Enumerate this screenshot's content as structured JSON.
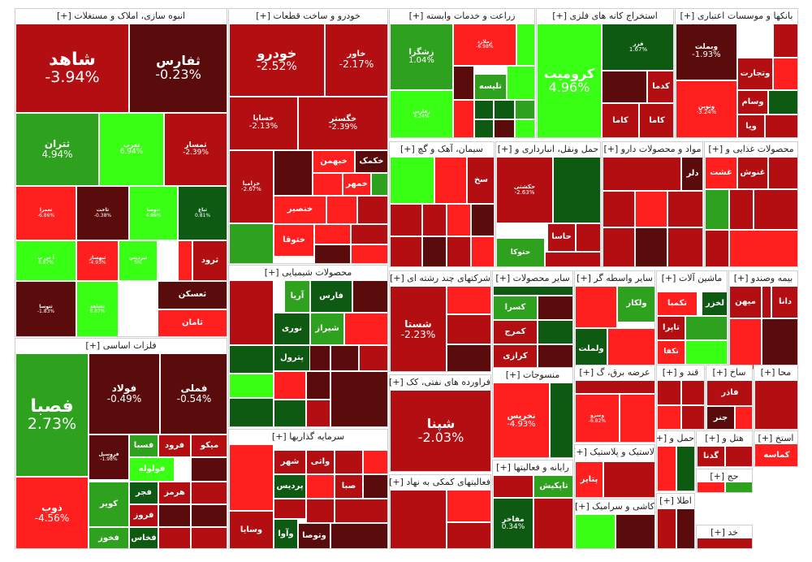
{
  "expand_marker": "[+]",
  "colors": {
    "dark_red": "#5a0b0b",
    "red": "#b30f12",
    "bright_red": "#ff1f1f",
    "dark_green": "#0e5a12",
    "green": "#2ea21f",
    "bright_green": "#39ff14"
  },
  "sectors": [
    {
      "key": "s1",
      "title": "انبوه سازی، املاک و مستغلات"
    },
    {
      "key": "s2",
      "title": "خودرو و ساخت قطعات"
    },
    {
      "key": "s3",
      "title": "زراعت و خدمات وابسته"
    },
    {
      "key": "s4",
      "title": "استخراج کانه های فلزی"
    },
    {
      "key": "s5",
      "title": "بانکها و موسسات اعتباری"
    },
    {
      "key": "s6",
      "title": "فلزات اساسی"
    },
    {
      "key": "s7",
      "title": "محصولات شیمیایی"
    },
    {
      "key": "s8",
      "title": "سیمان، آهک و گچ"
    },
    {
      "key": "s9",
      "title": "حمل ونقل، انبارداری و"
    },
    {
      "key": "s10",
      "title": "مواد و محصولات دارو"
    },
    {
      "key": "s11",
      "title": "محصولات غذایی و"
    },
    {
      "key": "s12",
      "title": "شرکتهای چند رشته ای"
    },
    {
      "key": "s13",
      "title": "سایر محصولات"
    },
    {
      "key": "s14",
      "title": "سایر واسطه گر"
    },
    {
      "key": "s15",
      "title": "ماشین آلات"
    },
    {
      "key": "s16",
      "title": "بیمه وصندو"
    },
    {
      "key": "s17",
      "title": "سرمایه گذاریها"
    },
    {
      "key": "s18",
      "title": "فراورده های نفتی، کک"
    },
    {
      "key": "s19",
      "title": "منسوجات"
    },
    {
      "key": "s20",
      "title": "عرضه برق، گ"
    },
    {
      "key": "s21",
      "title": "قند و"
    },
    {
      "key": "s22",
      "title": "ساخ"
    },
    {
      "key": "s23",
      "title": "محا"
    },
    {
      "key": "s24",
      "title": "لاستیک و پلاستیک"
    },
    {
      "key": "s25",
      "title": "فعالیتهای کمکی به نهاد"
    },
    {
      "key": "s26",
      "title": "رایانه و فعالیتها"
    },
    {
      "key": "s27",
      "title": "کاشی و سرامیک"
    },
    {
      "key": "s28",
      "title": "اطلا"
    },
    {
      "key": "s29",
      "title": "استخ"
    },
    {
      "key": "s30",
      "title": "حمل و"
    },
    {
      "key": "s31",
      "title": "هتل و"
    },
    {
      "key": "s32",
      "title": "خد"
    },
    {
      "key": "s33",
      "title": "حج"
    }
  ],
  "tiles": [
    {
      "name": "شاهد",
      "pct": "-3.94%"
    },
    {
      "name": "ثفارس",
      "pct": "-0.23%"
    },
    {
      "name": "ثتران",
      "pct": "4.94%"
    },
    {
      "name": "ثغرب",
      "pct": "6.94%"
    },
    {
      "name": "ثمسار",
      "pct": "-2.39%"
    },
    {
      "name": "ثعمرا",
      "pct": "-6.86%"
    },
    {
      "name": "ثاخت",
      "pct": "-0.38%"
    },
    {
      "name": "ثنوسا",
      "pct": "4.86%"
    },
    {
      "name": "ثباغ",
      "pct": "0.81%"
    },
    {
      "name": "آ س پ",
      "pct": "6.87%"
    },
    {
      "name": "ثبهساز",
      "pct": "-4.93%"
    },
    {
      "name": "ثپرديس",
      "pct": "5%"
    },
    {
      "name": "ثتوسا",
      "pct": "-1.83%"
    },
    {
      "name": "ثشاهد",
      "pct": "8.87%"
    },
    {
      "name": "ثرود",
      "pct": ""
    },
    {
      "name": "ثعسکن",
      "pct": ""
    },
    {
      "name": "ثامان",
      "pct": ""
    },
    {
      "name": "خودرو",
      "pct": "-2.52%"
    },
    {
      "name": "خاور",
      "pct": "-2.17%"
    },
    {
      "name": "خساپا",
      "pct": "-2.13%"
    },
    {
      "name": "خگستر",
      "pct": "-2.39%"
    },
    {
      "name": "خزامیا",
      "pct": "-2.67%"
    },
    {
      "name": "خکمک",
      "pct": ""
    },
    {
      "name": "خبهمن",
      "pct": ""
    },
    {
      "name": "خمهر",
      "pct": ""
    },
    {
      "name": "خنصیر",
      "pct": ""
    },
    {
      "name": "ختوقا",
      "pct": ""
    },
    {
      "name": "زشگزا",
      "pct": "1.04%"
    },
    {
      "name": "زملارد",
      "pct": "-6.98%"
    },
    {
      "name": "زفارس",
      "pct": "4.24%"
    },
    {
      "name": "تلیسه",
      "pct": ""
    },
    {
      "name": "کرومیت",
      "pct": "4.96%"
    },
    {
      "name": "فزر",
      "pct": "1.67%"
    },
    {
      "name": "کدما",
      "pct": ""
    },
    {
      "name": "کاما",
      "pct": ""
    },
    {
      "name": "وبملت",
      "pct": "-1.93%"
    },
    {
      "name": "وتجارت",
      "pct": ""
    },
    {
      "name": "وتوبن",
      "pct": "-3.24%"
    },
    {
      "name": "وسام",
      "pct": ""
    },
    {
      "name": "ویا",
      "pct": ""
    },
    {
      "name": "فصبا",
      "pct": "2.73%"
    },
    {
      "name": "فولاد",
      "pct": "-0.49%"
    },
    {
      "name": "فملی",
      "pct": "-0.54%"
    },
    {
      "name": "ذوب",
      "pct": "-4.56%"
    },
    {
      "name": "فروسيل",
      "pct": "-1.98%"
    },
    {
      "name": "فسبا",
      "pct": ""
    },
    {
      "name": "فرود",
      "pct": ""
    },
    {
      "name": "میکو",
      "pct": ""
    },
    {
      "name": "فولوله",
      "pct": ""
    },
    {
      "name": "فجر",
      "pct": ""
    },
    {
      "name": "فروز",
      "pct": ""
    },
    {
      "name": "فخاس",
      "pct": ""
    },
    {
      "name": "فخوز",
      "pct": ""
    },
    {
      "name": "کویر",
      "pct": ""
    },
    {
      "name": "هرمز",
      "pct": ""
    },
    {
      "name": "آریا",
      "pct": ""
    },
    {
      "name": "فارس",
      "pct": ""
    },
    {
      "name": "نوری",
      "pct": ""
    },
    {
      "name": "شیراز",
      "pct": ""
    },
    {
      "name": "پترول",
      "pct": ""
    },
    {
      "name": "سخ",
      "pct": ""
    },
    {
      "name": "حتوکا",
      "pct": ""
    },
    {
      "name": "حکشتی",
      "pct": "-2.63%"
    },
    {
      "name": "حاسا",
      "pct": ""
    },
    {
      "name": "دلر",
      "pct": ""
    },
    {
      "name": "غشت",
      "pct": ""
    },
    {
      "name": "غنوش",
      "pct": ""
    },
    {
      "name": "شستا",
      "pct": "-2.23%"
    },
    {
      "name": "کسرا",
      "pct": ""
    },
    {
      "name": "کمرج",
      "pct": ""
    },
    {
      "name": "کرازی",
      "pct": ""
    },
    {
      "name": "ولکار",
      "pct": ""
    },
    {
      "name": "ولملت",
      "pct": ""
    },
    {
      "name": "تکمبا",
      "pct": ""
    },
    {
      "name": "تاپرا",
      "pct": ""
    },
    {
      "name": "تکفا",
      "pct": ""
    },
    {
      "name": "لخزر",
      "pct": ""
    },
    {
      "name": "میهن",
      "pct": ""
    },
    {
      "name": "دانا",
      "pct": ""
    },
    {
      "name": "شهر",
      "pct": ""
    },
    {
      "name": "واتی",
      "pct": ""
    },
    {
      "name": "صبا",
      "pct": ""
    },
    {
      "name": "پردیس",
      "pct": ""
    },
    {
      "name": "وسایا",
      "pct": ""
    },
    {
      "name": "وآوا",
      "pct": ""
    },
    {
      "name": "وتوصا",
      "pct": ""
    },
    {
      "name": "شپنا",
      "pct": "-2.03%"
    },
    {
      "name": "نخریس",
      "pct": "-4.93%"
    },
    {
      "name": "وسرو",
      "pct": "-6.82%"
    },
    {
      "name": "فاذر",
      "pct": ""
    },
    {
      "name": "جنر",
      "pct": ""
    },
    {
      "name": "کماسه",
      "pct": ""
    },
    {
      "name": "گدنا",
      "pct": ""
    },
    {
      "name": "پتایر",
      "pct": ""
    },
    {
      "name": "تاپکیش",
      "pct": ""
    },
    {
      "name": "مفاخر",
      "pct": "0.34%"
    },
    {
      "name": "کاما",
      "pct": ""
    }
  ]
}
